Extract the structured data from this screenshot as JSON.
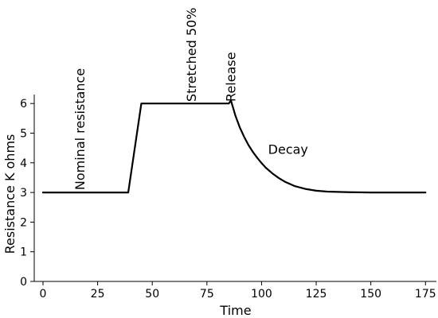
{
  "chart_data": {
    "type": "line",
    "title": "",
    "xlabel": "Time",
    "ylabel": "Resistance K ohms",
    "xlim": [
      -4,
      180
    ],
    "ylim": [
      0,
      6.3
    ],
    "xticks": [
      0,
      25,
      50,
      75,
      100,
      125,
      150,
      175
    ],
    "yticks": [
      0,
      1,
      2,
      3,
      4,
      5,
      6
    ],
    "grid": false,
    "series": [
      {
        "color": "#000000",
        "x": [
          0,
          39,
          45,
          85,
          86,
          88,
          90,
          92,
          94,
          96,
          98,
          100,
          102,
          105,
          108,
          111,
          115,
          120,
          125,
          130,
          140,
          150,
          160,
          175
        ],
        "y": [
          3,
          3,
          6,
          6,
          6.1,
          5.6,
          5.2,
          4.88,
          4.6,
          4.37,
          4.17,
          3.99,
          3.83,
          3.64,
          3.48,
          3.35,
          3.22,
          3.12,
          3.06,
          3.03,
          3.01,
          3.0,
          3.0,
          3.0
        ]
      }
    ],
    "annotations": [
      {
        "text": "Nominal resistance",
        "x": 19,
        "y": 3.08,
        "rotation": -90
      },
      {
        "text": "Stretched 50%",
        "x": 70,
        "y": 6.06,
        "rotation": -90
      },
      {
        "text": "Release",
        "x": 88,
        "y": 6.06,
        "rotation": -90
      },
      {
        "text": "Decay",
        "x": 103,
        "y": 4.3,
        "rotation": 0
      }
    ]
  }
}
